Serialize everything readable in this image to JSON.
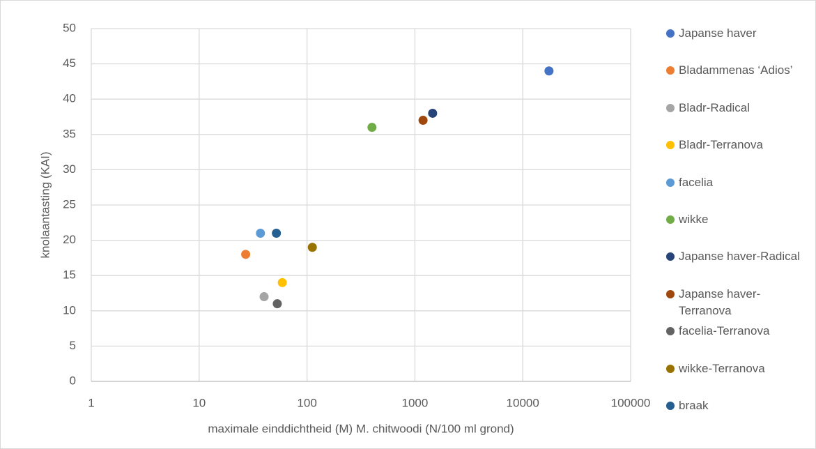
{
  "chart_data": {
    "type": "scatter",
    "x_label": "maximale einddichtheid (M) M. chitwoodi (N/100 ml grond)",
    "y_label": "knolaantasting (KAI)",
    "xlog": true,
    "grid": true,
    "xlim": [
      1,
      100000
    ],
    "xticks": [
      1,
      10,
      100,
      1000,
      10000,
      100000
    ],
    "ylim": [
      0,
      50
    ],
    "yticks": [
      0,
      5,
      10,
      15,
      20,
      25,
      30,
      35,
      40,
      45,
      50
    ],
    "legend": "right",
    "series": [
      {
        "name": "Japanse haver",
        "color": "#4472c4",
        "x": [
          17500
        ],
        "values": [
          44
        ]
      },
      {
        "name": "Bladammenas ‘Adios’",
        "color": "#ed7d31",
        "x": [
          27
        ],
        "values": [
          18
        ]
      },
      {
        "name": "Bladr-Radical",
        "color": "#a5a5a5",
        "x": [
          40
        ],
        "values": [
          12
        ]
      },
      {
        "name": "Bladr-Terranova",
        "color": "#ffc000",
        "x": [
          59
        ],
        "values": [
          14
        ]
      },
      {
        "name": "facelia",
        "color": "#5b9bd5",
        "x": [
          37
        ],
        "values": [
          21
        ]
      },
      {
        "name": "wikke",
        "color": "#70ad47",
        "x": [
          400
        ],
        "values": [
          36
        ]
      },
      {
        "name": "Japanse haver-Radical",
        "color": "#264478",
        "x": [
          1460
        ],
        "values": [
          38
        ]
      },
      {
        "name": "Japanse haver-Terranova",
        "color": "#9e480e",
        "x": [
          1190
        ],
        "values": [
          37
        ]
      },
      {
        "name": "facelia-Terranova",
        "color": "#636363",
        "x": [
          53
        ],
        "values": [
          11
        ]
      },
      {
        "name": "wikke-Terranova",
        "color": "#997300",
        "x": [
          112
        ],
        "values": [
          19
        ]
      },
      {
        "name": "braak",
        "color": "#255e91",
        "x": [
          52
        ],
        "values": [
          21
        ]
      }
    ]
  }
}
